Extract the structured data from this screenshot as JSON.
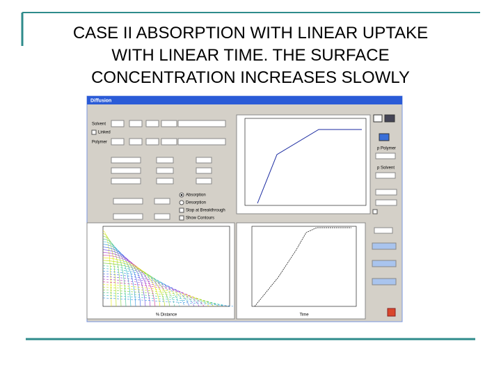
{
  "slide": {
    "title_lines": [
      "CASE II ABSORPTION WITH LINEAR UPTAKE",
      "WITH LINEAR TIME. THE SURFACE",
      "CONCENTRATION INCREASES SLOWLY"
    ]
  },
  "window": {
    "title": "Diffusion",
    "controls": [
      "Solvent",
      "Linked",
      "Polymer",
      "Absorption",
      "Desorption",
      "Stop at Breakthrough",
      "Show Contours"
    ],
    "side_labels": [
      "p Polymer",
      "p Solvent"
    ],
    "plot_labels": [
      "% Distance",
      "Time"
    ]
  }
}
